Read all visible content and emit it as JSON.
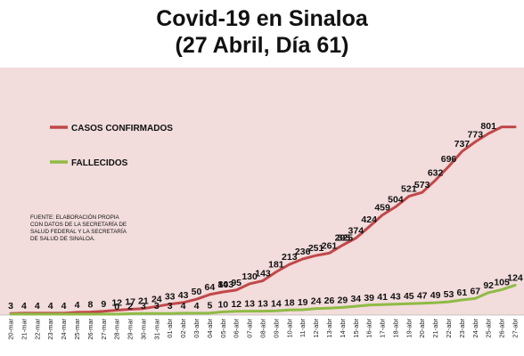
{
  "title_line1": "Covid-19 en Sinaloa",
  "title_line2": "(27 Abril, Día 61)",
  "chart_data": {
    "type": "line",
    "x": [
      "20-mar",
      "21-mar",
      "22-mar",
      "23-mar",
      "24-mar",
      "25-mar",
      "26-mar",
      "27-mar",
      "28-mar",
      "29-mar",
      "30-mar",
      "31-mar",
      "01-abr",
      "02-abr",
      "03-abr",
      "04-abr",
      "05-abr",
      "06-abr",
      "07-abr",
      "08-abr",
      "09-abr",
      "10-abr",
      "11-abr",
      "12-abr",
      "13-abr",
      "14-abr",
      "15-abr",
      "16-abr",
      "17-abr",
      "18-abr",
      "19-abr",
      "20-abr",
      "21-abr",
      "22-abr",
      "23-abr",
      "24-abr",
      "25-abr",
      "26-abr",
      "27-abr"
    ],
    "series": [
      {
        "name": "CASOS CONFIRMADOS",
        "color": "#c0484a",
        "values": [
          3,
          4,
          4,
          4,
          4,
          8,
          9,
          12,
          17,
          21,
          24,
          33,
          43,
          50,
          64,
          84,
          95,
          103,
          130,
          143,
          181,
          213,
          236,
          251,
          261,
          295,
          325,
          374,
          424,
          459,
          504,
          521,
          573,
          632,
          696,
          737,
          773,
          801,
          801
        ]
      },
      {
        "name": "FALLECIDOS",
        "color": "#8fbb45",
        "values": [
          0,
          0,
          0,
          0,
          0,
          0,
          0,
          0,
          0,
          2,
          3,
          3,
          3,
          4,
          4,
          5,
          10,
          12,
          13,
          13,
          14,
          18,
          19,
          24,
          26,
          29,
          34,
          39,
          41,
          43,
          45,
          47,
          49,
          53,
          61,
          67,
          92,
          105,
          124
        ]
      }
    ],
    "ylim": [
      0,
      850
    ]
  },
  "labels": {
    "confirmados": [
      {
        "t": "3",
        "i": 0
      },
      {
        "t": "4",
        "i": 1
      },
      {
        "t": "4",
        "i": 2
      },
      {
        "t": "4",
        "i": 3
      },
      {
        "t": "4",
        "i": 4
      },
      {
        "t": "4",
        "i": 5
      },
      {
        "t": "8",
        "i": 6
      },
      {
        "t": "9",
        "i": 7
      },
      {
        "t": "12",
        "i": 8
      },
      {
        "t": "17",
        "i": 9
      },
      {
        "t": "21",
        "i": 10
      },
      {
        "t": "24",
        "i": 11
      },
      {
        "t": "33",
        "i": 12
      },
      {
        "t": "43",
        "i": 13
      },
      {
        "t": "50",
        "i": 14
      },
      {
        "t": "64",
        "i": 15
      },
      {
        "t": "84",
        "i": 16
      },
      {
        "t": "95",
        "i": 17
      },
      {
        "t": "103",
        "i": 16.2
      },
      {
        "t": "130",
        "i": 18
      },
      {
        "t": "143",
        "i": 19
      },
      {
        "t": "181",
        "i": 20
      },
      {
        "t": "213",
        "i": 21
      },
      {
        "t": "236",
        "i": 22
      },
      {
        "t": "251",
        "i": 23
      },
      {
        "t": "261",
        "i": 24
      },
      {
        "t": "295",
        "i": 25
      },
      {
        "t": "325",
        "i": 25.2
      },
      {
        "t": "374",
        "i": 26
      },
      {
        "t": "424",
        "i": 27
      },
      {
        "t": "459",
        "i": 28
      },
      {
        "t": "504",
        "i": 29
      },
      {
        "t": "521",
        "i": 30
      },
      {
        "t": "573",
        "i": 31
      },
      {
        "t": "632",
        "i": 32
      },
      {
        "t": "696",
        "i": 33
      },
      {
        "t": "737",
        "i": 34
      },
      {
        "t": "773",
        "i": 35
      },
      {
        "t": "801",
        "i": 36
      }
    ],
    "fallecidos": [
      {
        "t": "0",
        "i": 8
      },
      {
        "t": "2",
        "i": 9
      },
      {
        "t": "3",
        "i": 10
      },
      {
        "t": "3",
        "i": 11
      },
      {
        "t": "3",
        "i": 12
      },
      {
        "t": "4",
        "i": 13
      },
      {
        "t": "4",
        "i": 14
      },
      {
        "t": "5",
        "i": 15
      },
      {
        "t": "10",
        "i": 16
      },
      {
        "t": "12",
        "i": 17
      },
      {
        "t": "13",
        "i": 18
      },
      {
        "t": "13",
        "i": 19
      },
      {
        "t": "14",
        "i": 20
      },
      {
        "t": "18",
        "i": 21
      },
      {
        "t": "19",
        "i": 22
      },
      {
        "t": "24",
        "i": 23
      },
      {
        "t": "26",
        "i": 24
      },
      {
        "t": "29",
        "i": 25
      },
      {
        "t": "34",
        "i": 26
      },
      {
        "t": "39",
        "i": 27
      },
      {
        "t": "41",
        "i": 28
      },
      {
        "t": "43",
        "i": 29
      },
      {
        "t": "45",
        "i": 30
      },
      {
        "t": "47",
        "i": 31
      },
      {
        "t": "49",
        "i": 32
      },
      {
        "t": "53",
        "i": 33
      },
      {
        "t": "61",
        "i": 34
      },
      {
        "t": "67",
        "i": 35
      },
      {
        "t": "92",
        "i": 36
      },
      {
        "t": "105",
        "i": 37
      },
      {
        "t": "124",
        "i": 38
      }
    ]
  },
  "legend": {
    "confirmados": "CASOS CONFIRMADOS",
    "fallecidos": "FALLECIDOS",
    "placement": "left"
  },
  "source_lines": [
    "FUENTE: ELABORACIÓN PROPIA",
    "CON DATOS DE LA SECRETARÍA DE",
    "SALUD FEDERAL Y LA SECRETARÍA",
    "DE SALUD DE SINALOA."
  ],
  "colors": {
    "plot_background": "#f2dcdc",
    "confirmados": "#c0484a",
    "fallecidos": "#8fbb45"
  }
}
